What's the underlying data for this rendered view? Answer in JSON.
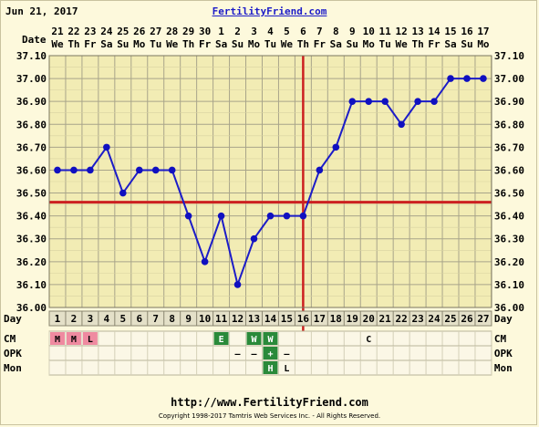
{
  "header": {
    "date": "Jun 21, 2017",
    "site": "FertilityFriend.com"
  },
  "footer": {
    "url": "http://www.FertilityFriend.com",
    "copyright": "Copyright 1998-2017 Tamtris Web Services Inc. - All Rights Reserved."
  },
  "chart_data": {
    "type": "line",
    "title": "",
    "date_row_label": "Date",
    "day_row_label": "Day",
    "dates": [
      "21",
      "22",
      "23",
      "24",
      "25",
      "26",
      "27",
      "28",
      "29",
      "30",
      "1",
      "2",
      "3",
      "4",
      "5",
      "6",
      "7",
      "8",
      "9",
      "10",
      "11",
      "12",
      "13",
      "14",
      "15",
      "16",
      "17"
    ],
    "weekdays": [
      "We",
      "Th",
      "Fr",
      "Sa",
      "Su",
      "Mo",
      "Tu",
      "We",
      "Th",
      "Fr",
      "Sa",
      "Su",
      "Mo",
      "Tu",
      "We",
      "Th",
      "Fr",
      "Sa",
      "Su",
      "Mo",
      "Tu",
      "We",
      "Th",
      "Fr",
      "Sa",
      "Su",
      "Mo"
    ],
    "days": [
      1,
      2,
      3,
      4,
      5,
      6,
      7,
      8,
      9,
      10,
      11,
      12,
      13,
      14,
      15,
      16,
      17,
      18,
      19,
      20,
      21,
      22,
      23,
      24,
      25,
      26,
      27
    ],
    "series": [
      {
        "values": [
          36.6,
          36.6,
          36.6,
          36.7,
          36.5,
          36.6,
          36.6,
          36.6,
          36.4,
          36.2,
          36.4,
          36.1,
          36.3,
          36.4,
          36.4,
          36.4,
          36.6,
          36.7,
          36.9,
          36.9,
          36.9,
          36.8,
          36.9,
          36.9,
          37.0,
          37.0,
          37.0
        ]
      }
    ],
    "ylim": [
      36.0,
      37.1
    ],
    "yticks": [
      "36.00",
      "36.10",
      "36.20",
      "36.30",
      "36.40",
      "36.50",
      "36.60",
      "36.70",
      "36.80",
      "36.90",
      "37.00",
      "37.10"
    ],
    "coverline": 36.46,
    "ovulation_day": 16,
    "grid": true,
    "colors": {
      "line": "#1c1cc8",
      "marker": "#1010c0",
      "coverline": "#cc2020",
      "plot_bg": "#f2ecb4",
      "grid": "#a8a48a",
      "cm_menses": "#ef8aa0",
      "green_cell": "#2a8a3a"
    },
    "rows": [
      {
        "label": "CM",
        "cells": {
          "1": {
            "text": "M",
            "style": "menses"
          },
          "2": {
            "text": "M",
            "style": "menses"
          },
          "3": {
            "text": "L",
            "style": "menses"
          },
          "11": {
            "text": "E",
            "style": "green"
          },
          "13": {
            "text": "W",
            "style": "green"
          },
          "14": {
            "text": "W",
            "style": "green"
          },
          "20": {
            "text": "C",
            "style": "plain"
          }
        }
      },
      {
        "label": "OPK",
        "cells": {
          "12": {
            "text": "–",
            "style": "plain"
          },
          "13": {
            "text": "–",
            "style": "plain"
          },
          "14": {
            "text": "+",
            "style": "green"
          },
          "15": {
            "text": "–",
            "style": "plain"
          }
        }
      },
      {
        "label": "Mon",
        "cells": {
          "14": {
            "text": "H",
            "style": "green"
          },
          "15": {
            "text": "L",
            "style": "plain"
          }
        }
      }
    ]
  }
}
